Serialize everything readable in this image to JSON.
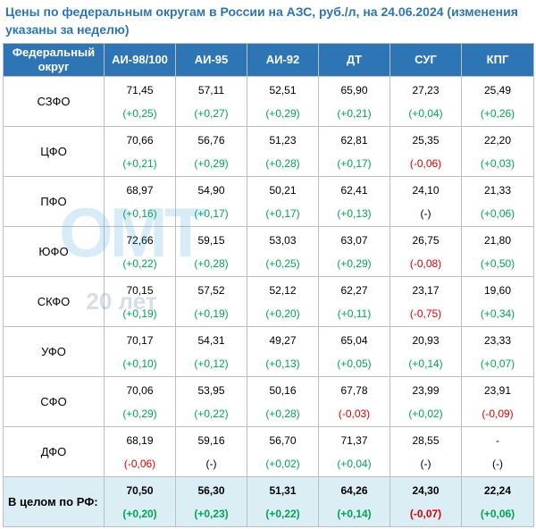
{
  "title": "Цены по федеральным округам в России на АЗС, руб./л, на 24.06.2024 (изменения указаны за неделю)",
  "watermark": {
    "logo": "ОМТ",
    "years": "20 лет"
  },
  "header": {
    "region": "Федеральный округ",
    "columns": [
      "АИ-98/100",
      "АИ-95",
      "АИ-92",
      "ДТ",
      "СУГ",
      "КПГ"
    ]
  },
  "colors": {
    "header_bg": "#2e75b6",
    "positive": "#00a651",
    "negative": "#e00000",
    "total_bg": "#dbeef6"
  },
  "rows": [
    {
      "region": "СЗФО",
      "cells": [
        {
          "price": "71,45",
          "change": "(+0,25)",
          "sign": "pos"
        },
        {
          "price": "57,11",
          "change": "(+0,27)",
          "sign": "pos"
        },
        {
          "price": "52,51",
          "change": "(+0,29)",
          "sign": "pos"
        },
        {
          "price": "65,90",
          "change": "(+0,21)",
          "sign": "pos"
        },
        {
          "price": "27,23",
          "change": "(+0,04)",
          "sign": "pos"
        },
        {
          "price": "25,49",
          "change": "(+0,26)",
          "sign": "pos"
        }
      ]
    },
    {
      "region": "ЦФО",
      "cells": [
        {
          "price": "70,66",
          "change": "(+0,21)",
          "sign": "pos"
        },
        {
          "price": "56,76",
          "change": "(+0,29)",
          "sign": "pos"
        },
        {
          "price": "51,23",
          "change": "(+0,28)",
          "sign": "pos"
        },
        {
          "price": "62,81",
          "change": "(+0,17)",
          "sign": "pos"
        },
        {
          "price": "25,35",
          "change": "(-0,06)",
          "sign": "neg"
        },
        {
          "price": "22,20",
          "change": "(+0,03)",
          "sign": "pos"
        }
      ]
    },
    {
      "region": "ПФО",
      "cells": [
        {
          "price": "68,97",
          "change": "(+0,16)",
          "sign": "pos"
        },
        {
          "price": "54,90",
          "change": "(+0,17)",
          "sign": "pos"
        },
        {
          "price": "50,21",
          "change": "(+0,17)",
          "sign": "pos"
        },
        {
          "price": "62,41",
          "change": "(+0,13)",
          "sign": "pos"
        },
        {
          "price": "24,10",
          "change": "(-)",
          "sign": "neu"
        },
        {
          "price": "21,33",
          "change": "(+0,06)",
          "sign": "pos"
        }
      ]
    },
    {
      "region": "ЮФО",
      "cells": [
        {
          "price": "72,66",
          "change": "(+0,22)",
          "sign": "pos"
        },
        {
          "price": "59,15",
          "change": "(+0,28)",
          "sign": "pos"
        },
        {
          "price": "53,03",
          "change": "(+0,25)",
          "sign": "pos"
        },
        {
          "price": "63,07",
          "change": "(+0,29)",
          "sign": "pos"
        },
        {
          "price": "26,75",
          "change": "(-0,08)",
          "sign": "neg"
        },
        {
          "price": "21,80",
          "change": "(+0,50)",
          "sign": "pos"
        }
      ]
    },
    {
      "region": "СКФО",
      "cells": [
        {
          "price": "70,15",
          "change": "(+0,19)",
          "sign": "pos"
        },
        {
          "price": "57,52",
          "change": "(+0,19)",
          "sign": "pos"
        },
        {
          "price": "52,12",
          "change": "(+0,20)",
          "sign": "pos"
        },
        {
          "price": "62,27",
          "change": "(+0,11)",
          "sign": "pos"
        },
        {
          "price": "23,17",
          "change": "(-0,75)",
          "sign": "neg"
        },
        {
          "price": "19,60",
          "change": "(+0,34)",
          "sign": "pos"
        }
      ]
    },
    {
      "region": "УФО",
      "cells": [
        {
          "price": "70,17",
          "change": "(+0,10)",
          "sign": "pos"
        },
        {
          "price": "54,31",
          "change": "(+0,12)",
          "sign": "pos"
        },
        {
          "price": "49,27",
          "change": "(+0,13)",
          "sign": "pos"
        },
        {
          "price": "65,04",
          "change": "(+0,05)",
          "sign": "pos"
        },
        {
          "price": "20,93",
          "change": "(+0,14)",
          "sign": "pos"
        },
        {
          "price": "23,33",
          "change": "(+0,07)",
          "sign": "pos"
        }
      ]
    },
    {
      "region": "СФО",
      "cells": [
        {
          "price": "70,06",
          "change": "(+0,29)",
          "sign": "pos"
        },
        {
          "price": "53,95",
          "change": "(+0,22)",
          "sign": "pos"
        },
        {
          "price": "50,16",
          "change": "(+0,28)",
          "sign": "pos"
        },
        {
          "price": "67,78",
          "change": "(-0,03)",
          "sign": "neg"
        },
        {
          "price": "23,99",
          "change": "(+0,02)",
          "sign": "pos"
        },
        {
          "price": "23,91",
          "change": "(-0,09)",
          "sign": "neg"
        }
      ]
    },
    {
      "region": "ДФО",
      "cells": [
        {
          "price": "68,19",
          "change": "(-0,06)",
          "sign": "neg"
        },
        {
          "price": "59,16",
          "change": "(-)",
          "sign": "neu"
        },
        {
          "price": "56,70",
          "change": "(+0,02)",
          "sign": "pos"
        },
        {
          "price": "71,37",
          "change": "(+0,04)",
          "sign": "pos"
        },
        {
          "price": "28,55",
          "change": "(-)",
          "sign": "neu"
        },
        {
          "price": "-",
          "change": "(-)",
          "sign": "neu"
        }
      ]
    }
  ],
  "total": {
    "region": "В целом по РФ:",
    "cells": [
      {
        "price": "70,50",
        "change": "(+0,20)",
        "sign": "pos"
      },
      {
        "price": "56,30",
        "change": "(+0,23)",
        "sign": "pos"
      },
      {
        "price": "51,31",
        "change": "(+0,22)",
        "sign": "pos"
      },
      {
        "price": "64,26",
        "change": "(+0,14)",
        "sign": "pos"
      },
      {
        "price": "24,30",
        "change": "(-0,07)",
        "sign": "neg"
      },
      {
        "price": "22,24",
        "change": "(+0,06)",
        "sign": "pos"
      }
    ]
  }
}
